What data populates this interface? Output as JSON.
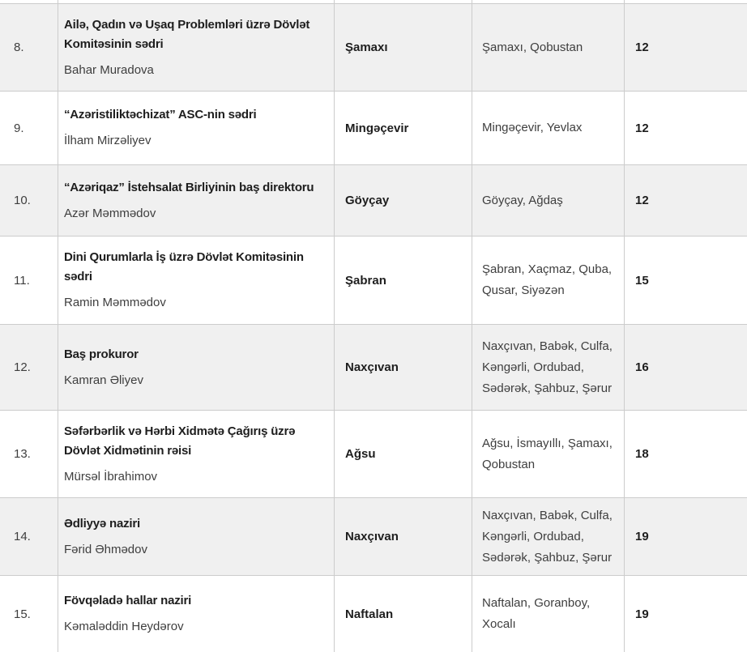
{
  "colors": {
    "shaded_row_bg": "#f0f0f0",
    "border": "#cccccc",
    "strong_text": "#1e1e1e",
    "body_text": "#3e3e3e"
  },
  "table": {
    "rows": [
      {
        "num": "8.",
        "title": "Ailə, Qadın və Uşaq Problemləri üzrə Dövlət Komitəsinin sədri",
        "name": "Bahar Muradova",
        "city": "Şamaxı",
        "regions": "Şamaxı, Qobustan",
        "count": "12",
        "shaded": true
      },
      {
        "num": "9.",
        "title": "“Azəristiliktəchizat” ASC-nin sədri",
        "name": "İlham Mirzəliyev",
        "city": "Mingəçevir",
        "regions": "Mingəçevir, Yevlax",
        "count": "12",
        "shaded": false
      },
      {
        "num": "10.",
        "title": "“Azəriqaz” İstehsalat Birliyinin baş direktoru",
        "name": "Azər Məmmədov",
        "city": "Göyçay",
        "regions": "Göyçay, Ağdaş",
        "count": "12",
        "shaded": true
      },
      {
        "num": "11.",
        "title": "Dini Qurumlarla İş üzrə Dövlət Komitəsinin sədri",
        "name": "Ramin Məmmədov",
        "city": "Şabran",
        "regions": "Şabran, Xaçmaz, Quba, Qusar, Siyəzən",
        "count": "15",
        "shaded": false
      },
      {
        "num": "12.",
        "title": "Baş prokuror",
        "name": "Kamran Əliyev",
        "city": "Naxçıvan",
        "regions": "Naxçıvan, Babək, Culfa, Kəngərli, Ordubad, Sədərək, Şahbuz, Şərur",
        "count": "16",
        "shaded": true
      },
      {
        "num": "13.",
        "title": "Səfərbərlik və Hərbi Xidmətə Çağırış üzrə Dövlət Xidmətinin rəisi",
        "name": "Mürsəl İbrahimov",
        "city": "Ağsu",
        "regions": "Ağsu, İsmayıllı, Şamaxı, Qobustan",
        "count": "18",
        "shaded": false
      },
      {
        "num": "14.",
        "title": "Ədliyyə naziri",
        "name": "Fərid Əhmədov",
        "city": "Naxçıvan",
        "regions": "Naxçıvan, Babək, Culfa, Kəngərli, Ordubad, Sədərək, Şahbuz, Şərur",
        "count": "19",
        "shaded": true
      },
      {
        "num": "15.",
        "title": "Fövqəladə hallar naziri",
        "name": "Kəmaləddin Heydərov",
        "city": "Naftalan",
        "regions": "Naftalan, Goranboy, Xocalı",
        "count": "19",
        "shaded": false
      }
    ]
  }
}
